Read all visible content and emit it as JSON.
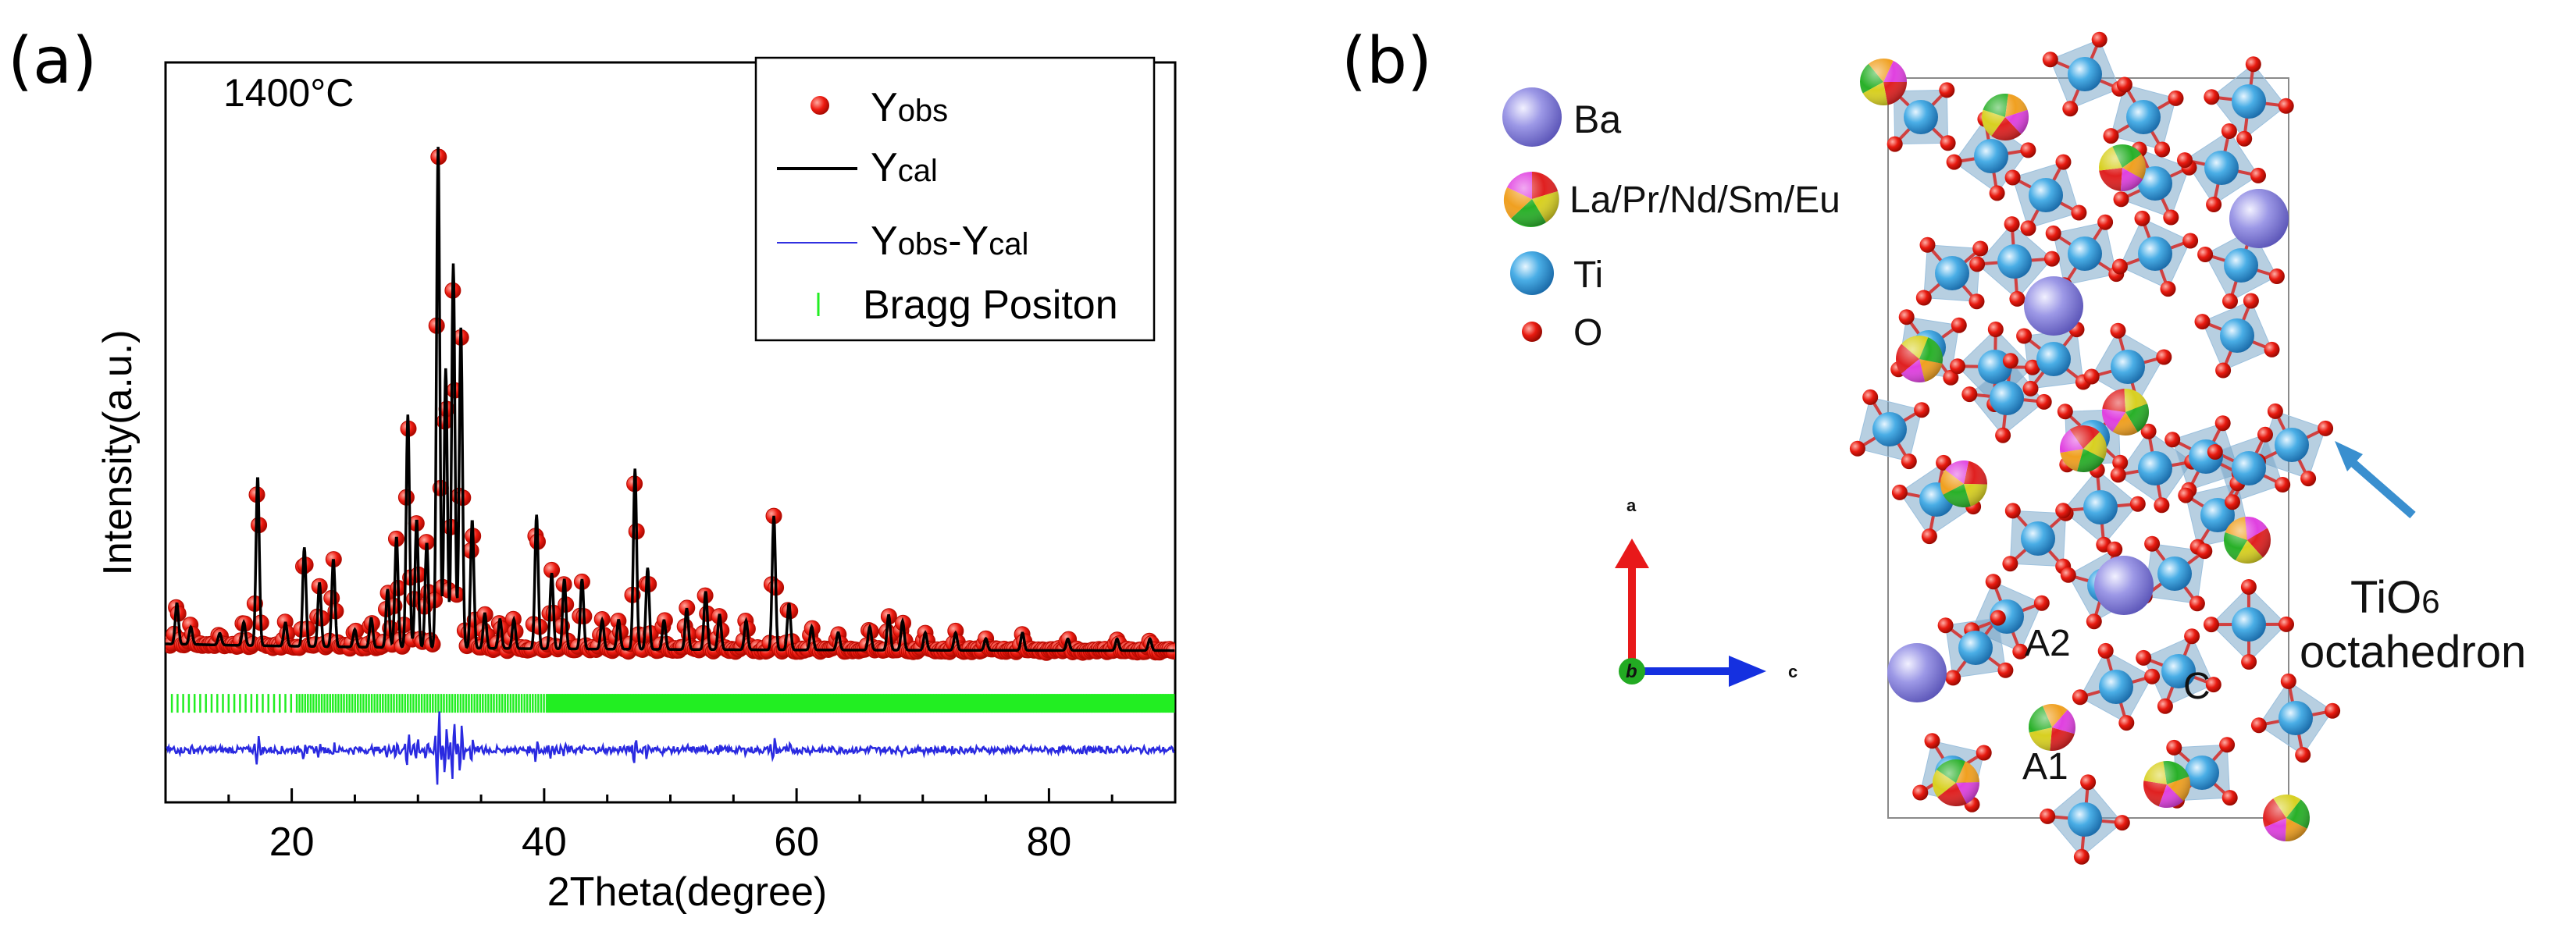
{
  "panel_a": {
    "label": "(a)",
    "chart_data": {
      "type": "line",
      "annotation": "1400°C",
      "xlabel": "2Theta(degree)",
      "ylabel": "Intensity(a.u.)",
      "xlim": [
        10,
        90
      ],
      "xticks": [
        "20",
        "40",
        "60",
        "80"
      ],
      "xtick_values": [
        20,
        40,
        60,
        80
      ],
      "y_units": "relative intensity",
      "ylim": [
        -0.22,
        1.05
      ],
      "background_level": 0.04,
      "diff_offset": -0.13,
      "bragg_row_level": -0.05,
      "legend": {
        "obs_main": "Y",
        "obs_sub": "obs",
        "cal_main": "Y",
        "cal_sub": "cal",
        "diff_main1": "Y",
        "diff_sub1": "obs",
        "diff_dash": "-",
        "diff_main2": "Y",
        "diff_sub2": "cal",
        "bragg": "Bragg Positon",
        "placement": "top-right"
      },
      "series": [
        {
          "name": "Yobs",
          "style": "red dots",
          "color": "#e8170f"
        },
        {
          "name": "Ycal",
          "style": "black line",
          "color": "#000000"
        },
        {
          "name": "Yobs-Ycal",
          "style": "blue line",
          "color": "#2a2ae0"
        },
        {
          "name": "Bragg Positon",
          "style": "green ticks",
          "color": "#22ee22"
        }
      ],
      "peaks": [
        [
          10.9,
          0.07
        ],
        [
          12.0,
          0.03
        ],
        [
          14.3,
          0.02
        ],
        [
          16.2,
          0.04
        ],
        [
          17.3,
          0.29
        ],
        [
          19.5,
          0.04
        ],
        [
          21.0,
          0.17
        ],
        [
          22.2,
          0.11
        ],
        [
          23.3,
          0.15
        ],
        [
          25.0,
          0.03
        ],
        [
          26.3,
          0.05
        ],
        [
          27.6,
          0.1
        ],
        [
          28.3,
          0.19
        ],
        [
          29.2,
          0.4
        ],
        [
          29.9,
          0.22
        ],
        [
          30.7,
          0.18
        ],
        [
          31.6,
          0.86
        ],
        [
          32.2,
          0.48
        ],
        [
          32.8,
          0.66
        ],
        [
          33.4,
          0.55
        ],
        [
          34.3,
          0.22
        ],
        [
          35.3,
          0.06
        ],
        [
          36.5,
          0.05
        ],
        [
          37.6,
          0.05
        ],
        [
          39.4,
          0.23
        ],
        [
          40.6,
          0.13
        ],
        [
          41.6,
          0.12
        ],
        [
          43.0,
          0.12
        ],
        [
          44.6,
          0.05
        ],
        [
          45.9,
          0.05
        ],
        [
          47.2,
          0.31
        ],
        [
          48.2,
          0.14
        ],
        [
          49.5,
          0.05
        ],
        [
          51.3,
          0.07
        ],
        [
          52.8,
          0.1
        ],
        [
          53.9,
          0.06
        ],
        [
          56.0,
          0.05
        ],
        [
          58.2,
          0.23
        ],
        [
          59.4,
          0.08
        ],
        [
          61.2,
          0.04
        ],
        [
          63.3,
          0.03
        ],
        [
          65.8,
          0.04
        ],
        [
          67.3,
          0.06
        ],
        [
          68.4,
          0.05
        ],
        [
          70.2,
          0.03
        ],
        [
          72.6,
          0.03
        ],
        [
          75.0,
          0.02
        ],
        [
          77.9,
          0.03
        ],
        [
          81.5,
          0.02
        ],
        [
          85.4,
          0.02
        ],
        [
          88.0,
          0.02
        ]
      ],
      "bragg_positions_note": "dense ticks from 10.5 to 90"
    }
  },
  "panel_b": {
    "label": "(b)",
    "legend": [
      {
        "symbol": "Ba",
        "label": "Ba",
        "color": "#8a85e0"
      },
      {
        "symbol": "mixed",
        "label": "La/Pr/Nd/Sm/Eu",
        "colors": [
          "#e82020",
          "#d8d820",
          "#20b020",
          "#e040e0",
          "#f0a020"
        ]
      },
      {
        "symbol": "Ti",
        "label": "Ti",
        "color": "#3ea5de"
      },
      {
        "symbol": "O",
        "label": "O",
        "color": "#e81a10"
      }
    ],
    "axes": {
      "a": "a",
      "b": "b",
      "c": "c",
      "a_color": "#e8191a",
      "b_color": "#22aa22",
      "c_color": "#1530e0"
    },
    "site_labels": [
      "A2",
      "C",
      "A1"
    ],
    "annotation": {
      "line1_main": "TiO",
      "line1_sub": "6",
      "line2": "octahedron",
      "arrow_color": "#3a8fcf"
    },
    "colors": {
      "octahedron": "#6f9fc4",
      "cell_edge": "#8a8a8a"
    }
  }
}
